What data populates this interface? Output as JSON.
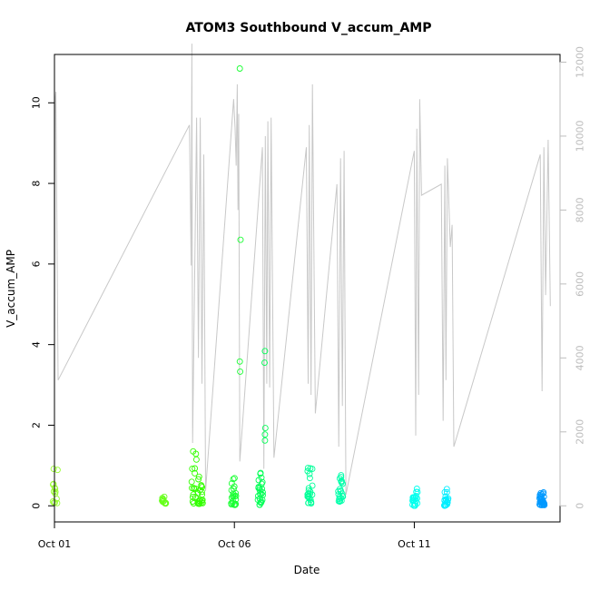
{
  "chart_data": {
    "type": "scatter",
    "title": "ATOM3 Southbound V_accum_AMP",
    "xlabel": "Date",
    "ylabel": "V_accum_AMP",
    "xlim": [
      0.0,
      14.05
    ],
    "ylim": [
      -0.4,
      11.2
    ],
    "x_ticks": [
      {
        "x": 0,
        "label": "Oct 01"
      },
      {
        "x": 5,
        "label": "Oct 06"
      },
      {
        "x": 10,
        "label": "Oct 11"
      }
    ],
    "y_ticks": [
      0,
      2,
      4,
      6,
      8,
      10
    ],
    "y2_ticks": [
      0,
      2000,
      4000,
      6000,
      8000,
      10000,
      12000
    ],
    "y2_ratio": 1090,
    "grey_line_color": "#c8c8c8",
    "bursts": [
      {
        "x": 0.02,
        "color": "#99ff33",
        "n": 14,
        "lo": 0.05,
        "hi": 0.98
      },
      {
        "x": 3.03,
        "color": "#66ff1a",
        "n": 12,
        "lo": 0.05,
        "hi": 0.32
      },
      {
        "x": 3.88,
        "color": "#33ff00",
        "n": 16,
        "lo": 0.05,
        "hi": 1.45
      },
      {
        "x": 4.05,
        "color": "#33ff00",
        "n": 22,
        "lo": 0.05,
        "hi": 0.85
      },
      {
        "x": 4.98,
        "color": "#1aff33",
        "n": 22,
        "lo": 0.02,
        "hi": 0.8
      },
      {
        "x": 5.72,
        "color": "#00ff55",
        "n": 24,
        "lo": 0.02,
        "hi": 0.85
      },
      {
        "x": 7.1,
        "color": "#00ff99",
        "n": 24,
        "lo": 0.05,
        "hi": 1.1
      },
      {
        "x": 7.95,
        "color": "#00ffaa",
        "n": 22,
        "lo": 0.1,
        "hi": 0.8
      },
      {
        "x": 10.02,
        "color": "#00ffee",
        "n": 22,
        "lo": 0.0,
        "hi": 0.45
      },
      {
        "x": 10.88,
        "color": "#00eeff",
        "n": 22,
        "lo": 0.0,
        "hi": 0.5
      },
      {
        "x": 13.55,
        "color": "#0099ff",
        "n": 32,
        "lo": 0.02,
        "hi": 0.35
      }
    ],
    "outliers": [
      {
        "x": 5.15,
        "y": 10.85,
        "color": "#1aff33"
      },
      {
        "x": 5.17,
        "y": 6.6,
        "color": "#1aff33"
      },
      {
        "x": 5.15,
        "y": 3.58,
        "color": "#1aff33"
      },
      {
        "x": 5.16,
        "y": 3.33,
        "color": "#1aff33"
      },
      {
        "x": 5.85,
        "y": 3.84,
        "color": "#00ff55"
      },
      {
        "x": 5.84,
        "y": 3.55,
        "color": "#00ff55"
      },
      {
        "x": 5.86,
        "y": 1.93,
        "color": "#00ff55"
      },
      {
        "x": 5.85,
        "y": 1.77,
        "color": "#00ff55"
      },
      {
        "x": 5.85,
        "y": 1.62,
        "color": "#00ff55"
      }
    ],
    "grey_series_y2": [
      [
        0.0,
        3600
      ],
      [
        0.02,
        11000
      ],
      [
        0.04,
        11200
      ],
      [
        0.1,
        3400
      ],
      [
        3.75,
        10300
      ],
      [
        3.8,
        6500
      ],
      [
        3.82,
        12500
      ],
      [
        3.84,
        1700
      ],
      [
        3.95,
        10500
      ],
      [
        4.0,
        4000
      ],
      [
        4.05,
        10500
      ],
      [
        4.1,
        3300
      ],
      [
        4.15,
        9500
      ],
      [
        4.2,
        400
      ],
      [
        4.98,
        11000
      ],
      [
        5.02,
        10200
      ],
      [
        5.05,
        9200
      ],
      [
        5.08,
        11400
      ],
      [
        5.1,
        8000
      ],
      [
        5.12,
        10600
      ],
      [
        5.15,
        1200
      ],
      [
        5.78,
        9700
      ],
      [
        5.82,
        1000
      ],
      [
        5.86,
        10000
      ],
      [
        5.9,
        3300
      ],
      [
        5.93,
        10400
      ],
      [
        5.98,
        3200
      ],
      [
        6.02,
        10500
      ],
      [
        6.1,
        1300
      ],
      [
        7.0,
        9700
      ],
      [
        7.05,
        3300
      ],
      [
        7.08,
        10300
      ],
      [
        7.13,
        3000
      ],
      [
        7.17,
        11400
      ],
      [
        7.25,
        2500
      ],
      [
        7.85,
        8700
      ],
      [
        7.9,
        1600
      ],
      [
        7.95,
        9400
      ],
      [
        8.0,
        2700
      ],
      [
        8.05,
        9600
      ],
      [
        8.1,
        300
      ],
      [
        10.0,
        9600
      ],
      [
        10.04,
        1900
      ],
      [
        10.07,
        10200
      ],
      [
        10.12,
        3000
      ],
      [
        10.15,
        11000
      ],
      [
        10.2,
        8400
      ],
      [
        10.75,
        8700
      ],
      [
        10.8,
        2300
      ],
      [
        10.85,
        9200
      ],
      [
        10.88,
        3400
      ],
      [
        10.92,
        9400
      ],
      [
        11.0,
        7000
      ],
      [
        11.05,
        7600
      ],
      [
        11.1,
        1600
      ],
      [
        13.5,
        9500
      ],
      [
        13.55,
        3100
      ],
      [
        13.6,
        9700
      ],
      [
        13.65,
        5700
      ],
      [
        13.72,
        9900
      ],
      [
        13.78,
        5400
      ]
    ]
  }
}
